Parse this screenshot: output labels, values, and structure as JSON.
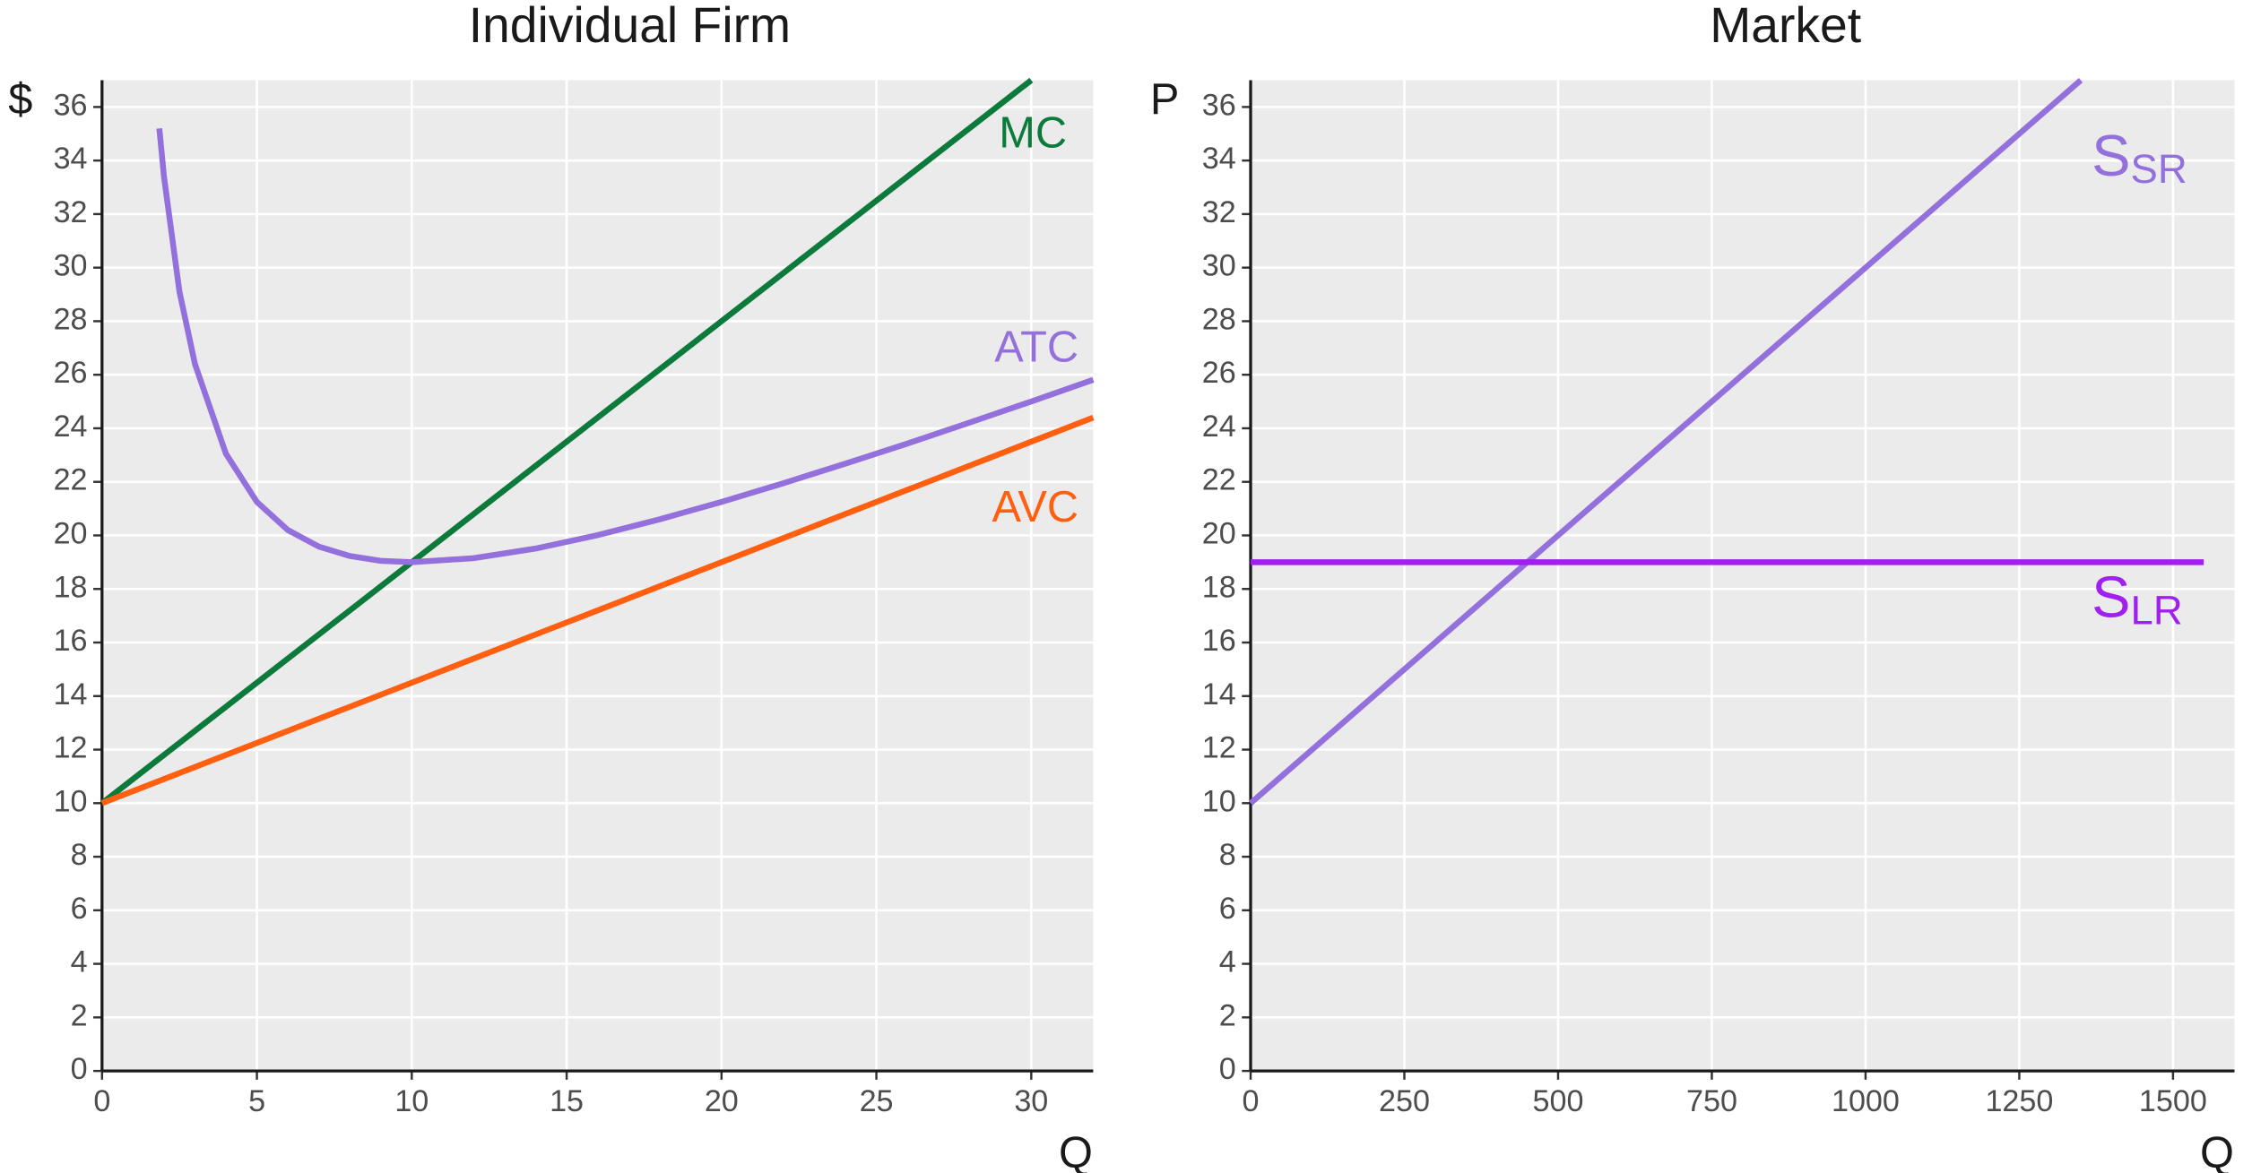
{
  "chart_data": [
    {
      "type": "line",
      "title": "Individual Firm",
      "y_label": "$",
      "x_label": "Q",
      "xlim": [
        0,
        32
      ],
      "ylim": [
        0,
        37
      ],
      "xticks": [
        0,
        5,
        10,
        15,
        20,
        25,
        30
      ],
      "yticks": [
        0,
        2,
        4,
        6,
        8,
        10,
        12,
        14,
        16,
        18,
        20,
        22,
        24,
        26,
        28,
        30,
        32,
        34,
        36
      ],
      "grid": true,
      "series": [
        {
          "name": "MC",
          "color": "#0b7a3b",
          "x": [
            0,
            30
          ],
          "values": [
            10,
            37
          ]
        },
        {
          "name": "ATC",
          "color": "#9370db",
          "x": [
            1.85,
            2,
            2.5,
            3,
            4,
            5,
            6,
            7,
            8,
            9,
            10,
            12,
            14,
            16,
            18,
            20,
            22,
            24,
            26,
            28,
            30,
            32
          ],
          "values": [
            35.2,
            33.4,
            29.1,
            26.4,
            23.05,
            21.25,
            20.2,
            19.58,
            19.23,
            19.05,
            19,
            19.15,
            19.51,
            20.01,
            20.6,
            21.25,
            21.95,
            22.68,
            23.43,
            24.21,
            25,
            25.81
          ]
        },
        {
          "name": "AVC",
          "color": "#ff5f0f",
          "x": [
            0,
            32
          ],
          "values": [
            10,
            24.4
          ]
        }
      ]
    },
    {
      "type": "line",
      "title": "Market",
      "y_label": "P",
      "x_label": "Q",
      "xlim": [
        0,
        1600
      ],
      "ylim": [
        0,
        37
      ],
      "xticks": [
        0,
        250,
        500,
        750,
        1000,
        1250,
        1500
      ],
      "yticks": [
        0,
        2,
        4,
        6,
        8,
        10,
        12,
        14,
        16,
        18,
        20,
        22,
        24,
        26,
        28,
        30,
        32,
        34,
        36
      ],
      "grid": true,
      "series": [
        {
          "name": "S",
          "name_sub": "SR",
          "color": "#9370db",
          "x": [
            0,
            1350
          ],
          "values": [
            10,
            37
          ]
        },
        {
          "name": "S",
          "name_sub": "LR",
          "color": "#a020f0",
          "x": [
            0,
            1550
          ],
          "values": [
            19,
            19
          ]
        }
      ]
    }
  ]
}
